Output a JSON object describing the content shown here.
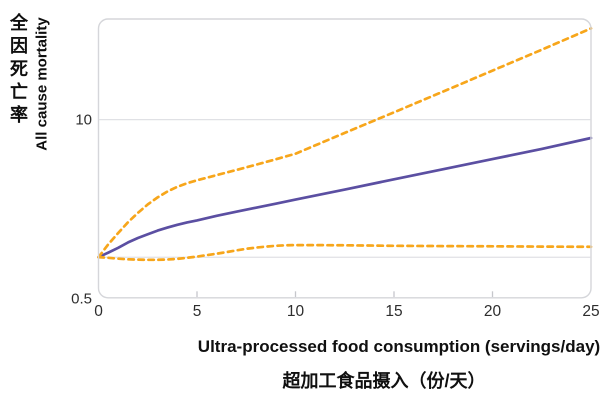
{
  "figure": {
    "kind": "dose-response line chart"
  },
  "chart_data": {
    "type": "line",
    "x_axis": {
      "label_en": "Ultra-processed food consumption (servings/day)",
      "label_zh": "超加工食品摄入（份/天）",
      "range": [
        0,
        25
      ],
      "ticks": [
        0,
        5,
        10,
        15,
        20,
        25
      ],
      "tick_marks": [
        5,
        10,
        15,
        20
      ]
    },
    "y_axis": {
      "label_zh": "全因死亡率",
      "label_en": "All cause mortality",
      "scale": "log",
      "range": [
        0.5,
        54
      ],
      "ticks": [
        {
          "value": 10,
          "label": "10"
        },
        {
          "value": 0.5,
          "label": "0.5"
        }
      ],
      "gridlines": [
        10,
        1
      ]
    },
    "legend": "none",
    "grid": "horizontal-only",
    "series": [
      {
        "name": "central estimate (solid)",
        "role": "estimate",
        "line": "solid",
        "color": "#5b4fa2",
        "points": [
          [
            0,
            1.0
          ],
          [
            0.5,
            1.08
          ],
          [
            1,
            1.17
          ],
          [
            1.5,
            1.28
          ],
          [
            2,
            1.38
          ],
          [
            2.5,
            1.47
          ],
          [
            3,
            1.56
          ],
          [
            3.5,
            1.64
          ],
          [
            4,
            1.72
          ],
          [
            4.5,
            1.79
          ],
          [
            5,
            1.85
          ],
          [
            6,
            2.0
          ],
          [
            7,
            2.14
          ],
          [
            8,
            2.29
          ],
          [
            9,
            2.45
          ],
          [
            10,
            2.62
          ],
          [
            12.5,
            3.1
          ],
          [
            15,
            3.68
          ],
          [
            17.5,
            4.36
          ],
          [
            20,
            5.16
          ],
          [
            22.5,
            6.12
          ],
          [
            25,
            7.35
          ]
        ]
      },
      {
        "name": "upper dashed band line",
        "role": "upper-band",
        "line": "dashed",
        "color": "#f7a61b",
        "points": [
          [
            0,
            1.0
          ],
          [
            0.5,
            1.24
          ],
          [
            1,
            1.5
          ],
          [
            1.5,
            1.8
          ],
          [
            2,
            2.1
          ],
          [
            2.5,
            2.42
          ],
          [
            3,
            2.72
          ],
          [
            3.5,
            3.0
          ],
          [
            4,
            3.25
          ],
          [
            4.5,
            3.45
          ],
          [
            5,
            3.62
          ],
          [
            6,
            3.95
          ],
          [
            7,
            4.3
          ],
          [
            8,
            4.7
          ],
          [
            9,
            5.15
          ],
          [
            10,
            5.65
          ],
          [
            12.5,
            8.0
          ],
          [
            15,
            11.3
          ],
          [
            17.5,
            16.0
          ],
          [
            20,
            22.7
          ],
          [
            22.5,
            32.2
          ],
          [
            25,
            46.0
          ]
        ]
      },
      {
        "name": "lower dashed band line",
        "role": "lower-band",
        "line": "dashed",
        "color": "#f7a61b",
        "points": [
          [
            0,
            1.0
          ],
          [
            0.5,
            0.99
          ],
          [
            1,
            0.975
          ],
          [
            1.5,
            0.965
          ],
          [
            2,
            0.96
          ],
          [
            2.5,
            0.957
          ],
          [
            3,
            0.957
          ],
          [
            3.5,
            0.962
          ],
          [
            4,
            0.972
          ],
          [
            4.5,
            0.99
          ],
          [
            5,
            1.01
          ],
          [
            5.5,
            1.035
          ],
          [
            6,
            1.06
          ],
          [
            6.5,
            1.09
          ],
          [
            7,
            1.12
          ],
          [
            7.5,
            1.15
          ],
          [
            8,
            1.175
          ],
          [
            8.5,
            1.195
          ],
          [
            9,
            1.21
          ],
          [
            9.5,
            1.22
          ],
          [
            10,
            1.225
          ],
          [
            11,
            1.225
          ],
          [
            12.5,
            1.22
          ],
          [
            15,
            1.21
          ],
          [
            17.5,
            1.205
          ],
          [
            20,
            1.2
          ],
          [
            22.5,
            1.195
          ],
          [
            25,
            1.19
          ]
        ]
      }
    ],
    "colors": {
      "frame": "#d5d6da",
      "gridline": "#e0e1e5",
      "tick_mark": "#c6c7cb",
      "tick_text": "#2d2d2d",
      "title_text": "#101010"
    }
  }
}
